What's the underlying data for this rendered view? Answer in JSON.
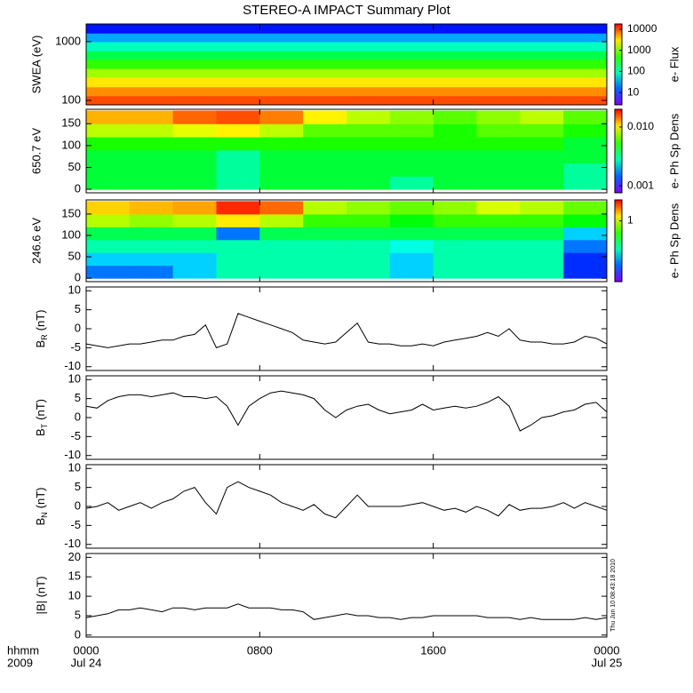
{
  "title": "STEREO-A IMPACT Summary Plot",
  "timestamp": "Thu Jun 10 08:43:18 2010",
  "chart_data": [
    {
      "type": "heatmap",
      "ylabel": "SWEA (eV)",
      "log_y": true,
      "ylim": [
        84,
        2000
      ],
      "yticks": [
        100,
        1000
      ],
      "xlim": [
        0,
        24
      ],
      "x_bins": [
        0,
        24
      ],
      "y_bins": [
        84,
        120,
        170,
        250,
        350,
        500,
        700,
        1000,
        1400,
        2000
      ],
      "z": [
        10000,
        6000,
        3000,
        1200,
        500,
        200,
        80,
        25,
        8
      ],
      "clabel": "e- Flux",
      "clim": [
        2.6,
        17800
      ],
      "cticks": [
        10000,
        1000,
        100,
        10
      ]
    },
    {
      "type": "heatmap",
      "ylabel": "650.7 eV",
      "log_y": false,
      "ylim": [
        -8,
        183
      ],
      "yticks": [
        0,
        50,
        100,
        150
      ],
      "xlim": [
        0,
        24
      ],
      "x_bins": [
        0,
        2,
        4,
        6,
        8,
        10,
        12,
        14,
        16,
        18,
        20,
        22,
        24
      ],
      "y_bins": [
        0,
        30,
        60,
        90,
        120,
        150,
        180
      ],
      "z": [
        [
          0.004,
          0.004,
          0.004,
          0.003,
          0.004,
          0.004,
          0.004,
          0.003,
          0.004,
          0.004,
          0.004,
          0.003
        ],
        [
          0.004,
          0.004,
          0.004,
          0.003,
          0.004,
          0.004,
          0.004,
          0.004,
          0.004,
          0.004,
          0.004,
          0.003
        ],
        [
          0.004,
          0.004,
          0.004,
          0.003,
          0.004,
          0.004,
          0.004,
          0.004,
          0.004,
          0.004,
          0.004,
          0.004
        ],
        [
          0.005,
          0.005,
          0.005,
          0.005,
          0.005,
          0.005,
          0.005,
          0.005,
          0.005,
          0.005,
          0.005,
          0.004
        ],
        [
          0.008,
          0.008,
          0.009,
          0.01,
          0.008,
          0.006,
          0.006,
          0.006,
          0.005,
          0.006,
          0.006,
          0.005
        ],
        [
          0.012,
          0.012,
          0.015,
          0.016,
          0.014,
          0.01,
          0.008,
          0.007,
          0.006,
          0.007,
          0.008,
          0.006
        ]
      ],
      "clabel": "e- Ph Sp Dens",
      "clim": [
        0.00076,
        0.02
      ],
      "cticks": [
        {
          "value": 0.01,
          "label": "0.010"
        },
        0.001
      ]
    },
    {
      "type": "heatmap",
      "ylabel": "246.6 eV",
      "log_y": false,
      "ylim": [
        -8,
        183
      ],
      "yticks": [
        0,
        50,
        100,
        150
      ],
      "xlim": [
        0,
        24
      ],
      "x_bins": [
        0,
        2,
        4,
        6,
        8,
        10,
        12,
        14,
        16,
        18,
        20,
        22,
        24
      ],
      "y_bins": [
        0,
        30,
        60,
        90,
        120,
        150,
        180
      ],
      "z": [
        [
          0.15,
          0.15,
          0.2,
          0.3,
          0.3,
          0.3,
          0.3,
          0.2,
          0.3,
          0.3,
          0.3,
          0.12
        ],
        [
          0.2,
          0.2,
          0.2,
          0.3,
          0.3,
          0.3,
          0.3,
          0.2,
          0.3,
          0.3,
          0.3,
          0.12
        ],
        [
          0.3,
          0.3,
          0.3,
          0.3,
          0.3,
          0.3,
          0.3,
          0.25,
          0.3,
          0.3,
          0.3,
          0.15
        ],
        [
          0.4,
          0.4,
          0.4,
          0.15,
          0.4,
          0.4,
          0.4,
          0.4,
          0.4,
          0.4,
          0.4,
          0.2
        ],
        [
          0.9,
          0.8,
          0.9,
          1.2,
          0.9,
          0.6,
          0.6,
          0.5,
          0.6,
          0.6,
          0.6,
          0.5
        ],
        [
          1.3,
          1.4,
          1.5,
          2.2,
          1.8,
          0.9,
          0.8,
          0.7,
          0.8,
          1.0,
          0.9,
          0.7
        ]
      ],
      "clabel": "e- Ph Sp Dens",
      "clim": [
        0.07,
        2.5
      ],
      "cticks": [
        1
      ]
    },
    {
      "type": "line",
      "ylabel": "B",
      "ylabel_sub": "R",
      "ylabel_unit": "(nT)",
      "color": "#000000",
      "ylim": [
        -11,
        11
      ],
      "yticks": [
        -10,
        -5,
        0,
        5,
        10
      ],
      "xlim": [
        0,
        24
      ],
      "x": [
        0,
        0.5,
        1,
        1.5,
        2,
        2.5,
        3,
        3.5,
        4,
        4.5,
        5,
        5.5,
        6,
        6.5,
        7,
        7.5,
        8,
        8.5,
        9,
        9.5,
        10,
        10.5,
        11,
        11.5,
        12,
        12.5,
        13,
        13.5,
        14,
        14.5,
        15,
        15.5,
        16,
        16.5,
        17,
        17.5,
        18,
        18.5,
        19,
        19.5,
        20,
        20.5,
        21,
        21.5,
        22,
        22.5,
        23,
        23.5,
        24
      ],
      "y": [
        -4,
        -4.5,
        -5,
        -4.5,
        -4,
        -4,
        -3.5,
        -3,
        -3,
        -2,
        -1.5,
        1,
        -5,
        -4,
        4,
        3,
        2,
        1,
        0,
        -1,
        -3,
        -3.5,
        -4,
        -3.5,
        -1,
        1.5,
        -3.5,
        -4,
        -4,
        -4.5,
        -4.5,
        -4,
        -4.5,
        -3.5,
        -3,
        -2.5,
        -2,
        -1,
        -2,
        0,
        -3,
        -3.5,
        -3.5,
        -4,
        -4,
        -3.5,
        -2,
        -2.5,
        -4
      ]
    },
    {
      "type": "line",
      "ylabel": "B",
      "ylabel_sub": "T",
      "ylabel_unit": "(nT)",
      "color": "#000000",
      "ylim": [
        -11,
        11
      ],
      "yticks": [
        -10,
        -5,
        0,
        5,
        10
      ],
      "xlim": [
        0,
        24
      ],
      "x": [
        0,
        0.5,
        1,
        1.5,
        2,
        2.5,
        3,
        3.5,
        4,
        4.5,
        5,
        5.5,
        6,
        6.5,
        7,
        7.5,
        8,
        8.5,
        9,
        9.5,
        10,
        10.5,
        11,
        11.5,
        12,
        12.5,
        13,
        13.5,
        14,
        14.5,
        15,
        15.5,
        16,
        16.5,
        17,
        17.5,
        18,
        18.5,
        19,
        19.5,
        20,
        20.5,
        21,
        21.5,
        22,
        22.5,
        23,
        23.5,
        24
      ],
      "y": [
        3,
        2.5,
        4.5,
        5.5,
        6,
        6,
        5.5,
        6,
        6.5,
        5.5,
        5.5,
        5,
        5.5,
        3,
        -2,
        3,
        5,
        6.5,
        7,
        6.5,
        6,
        5,
        2,
        0,
        2,
        3,
        3.5,
        2,
        1,
        1.5,
        2,
        3.5,
        2,
        2.5,
        3,
        2.5,
        3,
        4,
        5.5,
        3,
        -3.5,
        -2,
        0,
        0.5,
        1.5,
        2,
        3.5,
        4,
        1.5
      ]
    },
    {
      "type": "line",
      "ylabel": "B",
      "ylabel_sub": "N",
      "ylabel_unit": "(nT)",
      "color": "#000000",
      "ylim": [
        -11,
        11
      ],
      "yticks": [
        -10,
        -5,
        0,
        5,
        10
      ],
      "xlim": [
        0,
        24
      ],
      "x": [
        0,
        0.5,
        1,
        1.5,
        2,
        2.5,
        3,
        3.5,
        4,
        4.5,
        5,
        5.5,
        6,
        6.5,
        7,
        7.5,
        8,
        8.5,
        9,
        9.5,
        10,
        10.5,
        11,
        11.5,
        12,
        12.5,
        13,
        13.5,
        14,
        14.5,
        15,
        15.5,
        16,
        16.5,
        17,
        17.5,
        18,
        18.5,
        19,
        19.5,
        20,
        20.5,
        21,
        21.5,
        22,
        22.5,
        23,
        23.5,
        24
      ],
      "y": [
        -0.5,
        0,
        1,
        -1,
        0,
        1,
        -0.5,
        1,
        2,
        4,
        5,
        1,
        -2,
        5,
        6.5,
        5,
        4,
        3,
        1,
        0,
        -1,
        0.5,
        -2,
        -3,
        0,
        3,
        0,
        0,
        0,
        0,
        0.5,
        1,
        0,
        -1,
        -0.5,
        -1.5,
        0,
        -1,
        -2.5,
        0.5,
        -1,
        -0.5,
        -0.5,
        0,
        1,
        -0.5,
        1,
        0,
        -1
      ]
    },
    {
      "type": "line",
      "ylabel": "|B| (nT)",
      "color": "#000000",
      "ylim": [
        -0.5,
        21
      ],
      "yticks": [
        0,
        5,
        10,
        15,
        20
      ],
      "xlim": [
        0,
        24
      ],
      "x": [
        0,
        0.5,
        1,
        1.5,
        2,
        2.5,
        3,
        3.5,
        4,
        4.5,
        5,
        5.5,
        6,
        6.5,
        7,
        7.5,
        8,
        8.5,
        9,
        9.5,
        10,
        10.5,
        11,
        11.5,
        12,
        12.5,
        13,
        13.5,
        14,
        14.5,
        15,
        15.5,
        16,
        16.5,
        17,
        17.5,
        18,
        18.5,
        19,
        19.5,
        20,
        20.5,
        21,
        21.5,
        22,
        22.5,
        23,
        23.5,
        24
      ],
      "y": [
        4.5,
        5,
        5.5,
        6.5,
        6.5,
        7,
        6.5,
        6,
        7,
        7,
        6.5,
        7,
        7,
        7,
        8,
        7,
        7,
        7,
        6.5,
        6.5,
        6,
        4,
        4.5,
        5,
        5.5,
        5,
        5,
        4.5,
        4.5,
        4,
        4.5,
        4.5,
        5,
        5,
        5,
        5,
        5,
        4.5,
        4.5,
        4.5,
        4,
        4.5,
        4,
        4,
        4,
        4,
        4.5,
        4,
        4.5
      ],
      "xticks": [
        {
          "value": 0,
          "label": "0000"
        },
        {
          "value": 8,
          "label": "0800"
        },
        {
          "value": 16,
          "label": "1600"
        },
        {
          "value": 24,
          "label": "0000"
        }
      ],
      "x_sublabels": [
        "Jul 24",
        null,
        null,
        "Jul 25"
      ],
      "xlabel": "hhmm",
      "xlabel2": "2009"
    }
  ]
}
